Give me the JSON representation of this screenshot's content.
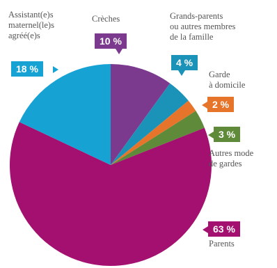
{
  "chart_data": {
    "type": "pie",
    "unit": "%",
    "slices": [
      {
        "name": "Crèches",
        "value": 10,
        "badge": "10 %",
        "color": "#7b3a8e"
      },
      {
        "name": "Grands-parents\nou autres membres\nde la famille",
        "value": 4,
        "badge": "4 %",
        "color": "#1b93b8"
      },
      {
        "name": "Garde\nà domicile",
        "value": 2,
        "badge": "2 %",
        "color": "#e6742b"
      },
      {
        "name": "Autres mode\nde gardes",
        "value": 3,
        "badge": "3 %",
        "color": "#5f8a3a"
      },
      {
        "name": "Parents",
        "value": 63,
        "badge": "63 %",
        "color": "#a3106f"
      },
      {
        "name": "Assistant(e)s\nmaternel(le)s\nagréé(e)s",
        "value": 18,
        "badge": "18 %",
        "color": "#16a3d4"
      }
    ]
  }
}
